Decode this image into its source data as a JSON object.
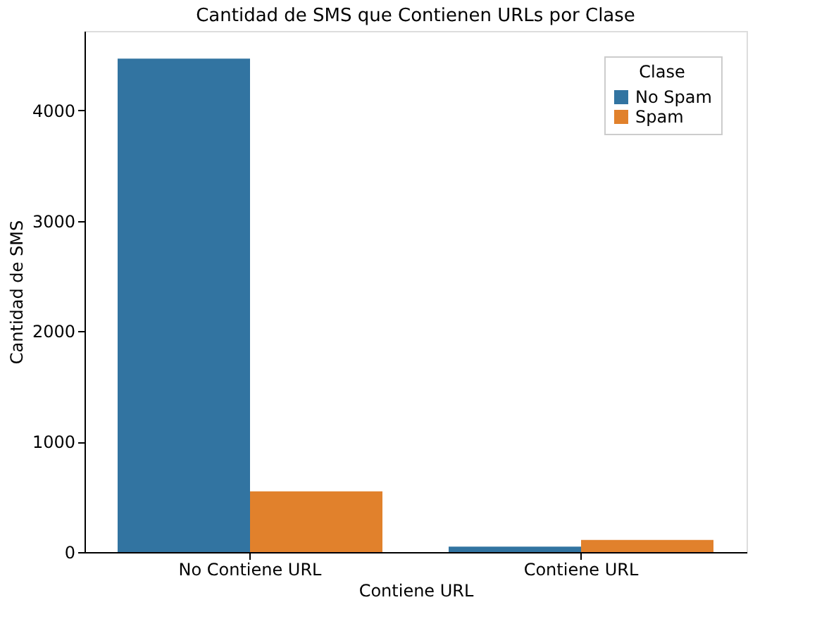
{
  "chart_data": {
    "type": "bar",
    "title": "Cantidad de SMS que Contienen URLs por Clase",
    "xlabel": "Contiene URL",
    "ylabel": "Cantidad de SMS",
    "legend_title": "Clase",
    "categories": [
      "No Contiene URL",
      "Contiene URL"
    ],
    "series": [
      {
        "name": "No Spam",
        "color": "#3274a1",
        "values": [
          4470,
          50
        ]
      },
      {
        "name": "Spam",
        "color": "#e1812c",
        "values": [
          550,
          110
        ]
      }
    ],
    "ylim": [
      0,
      4720
    ],
    "yticks": [
      0,
      1000,
      2000,
      3000,
      4000
    ],
    "grid": false,
    "legend": "top right"
  }
}
